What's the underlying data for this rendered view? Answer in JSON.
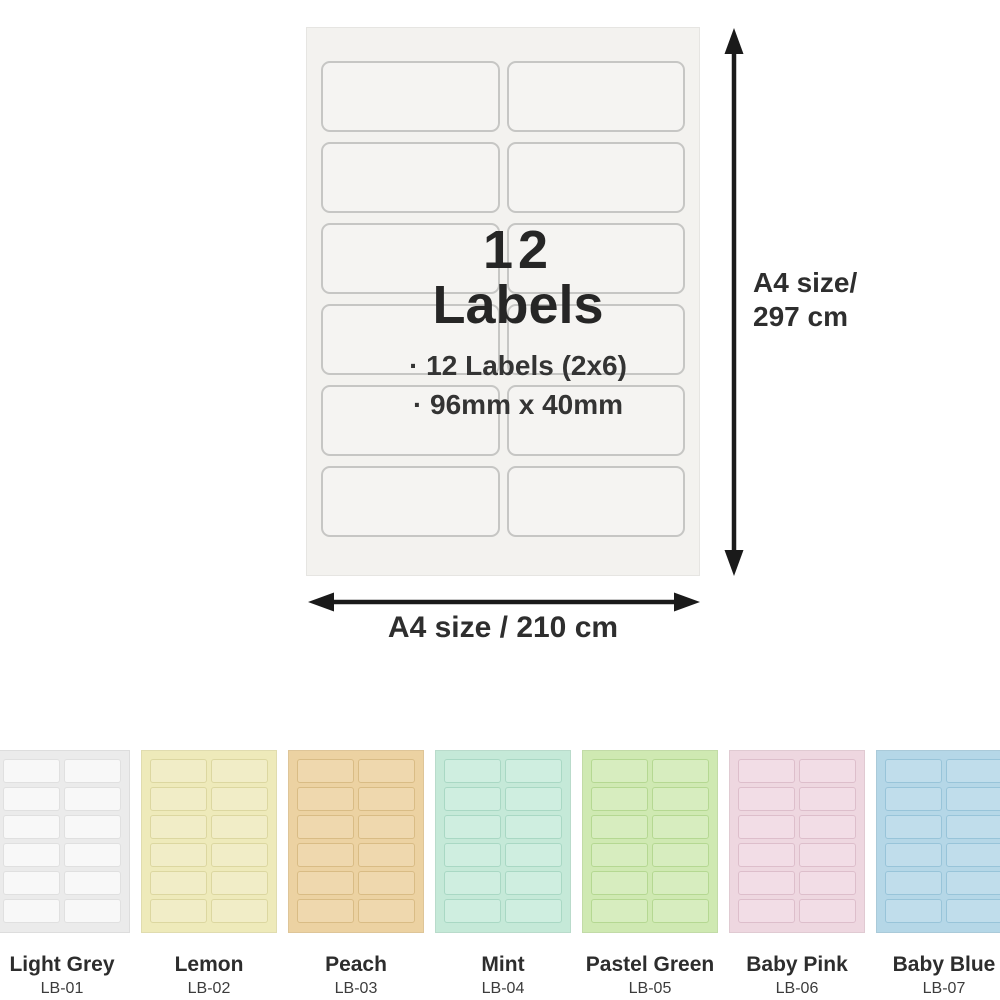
{
  "diagram": {
    "title_line1": "12",
    "title_line2": "Labels",
    "spec_line1": "· 12 Labels (2x6)",
    "spec_line2": "· 96mm x 40mm",
    "height_label_line1": "A4 size/",
    "height_label_line2": "297 cm",
    "width_label": "A4 size / 210 cm",
    "grid": {
      "rows": 6,
      "columns": 2
    },
    "sheet_color": "#f3f2ef",
    "cell_color": "#f5f4f2",
    "cell_border_color": "#c6c6c4",
    "arrow_color": "#1a1a1a",
    "text_color": "#262626"
  },
  "swatches": [
    {
      "name": "Light Grey",
      "code": "LB-01",
      "sheet_color": "#ebebeb",
      "cell_color": "#f8f8f8",
      "cell_border_color": "#e0e0e0"
    },
    {
      "name": "Lemon",
      "code": "LB-02",
      "sheet_color": "#eeeaba",
      "cell_color": "#f1edc7",
      "cell_border_color": "#dcd7a0"
    },
    {
      "name": "Peach",
      "code": "LB-03",
      "sheet_color": "#ecd2a2",
      "cell_color": "#efd8ae",
      "cell_border_color": "#d9bc85"
    },
    {
      "name": "Mint",
      "code": "LB-04",
      "sheet_color": "#c5e9d8",
      "cell_color": "#cfeee0",
      "cell_border_color": "#a9d8c4"
    },
    {
      "name": "Pastel Green",
      "code": "LB-05",
      "sheet_color": "#cfe9b2",
      "cell_color": "#d7edbf",
      "cell_border_color": "#b5d892"
    },
    {
      "name": "Baby Pink",
      "code": "LB-06",
      "sheet_color": "#eed7e0",
      "cell_color": "#f2dde6",
      "cell_border_color": "#ddbecb"
    },
    {
      "name": "Baby Blue",
      "code": "LB-07",
      "sheet_color": "#b5d7e7",
      "cell_color": "#c0ddeb",
      "cell_border_color": "#98c4d9"
    }
  ]
}
